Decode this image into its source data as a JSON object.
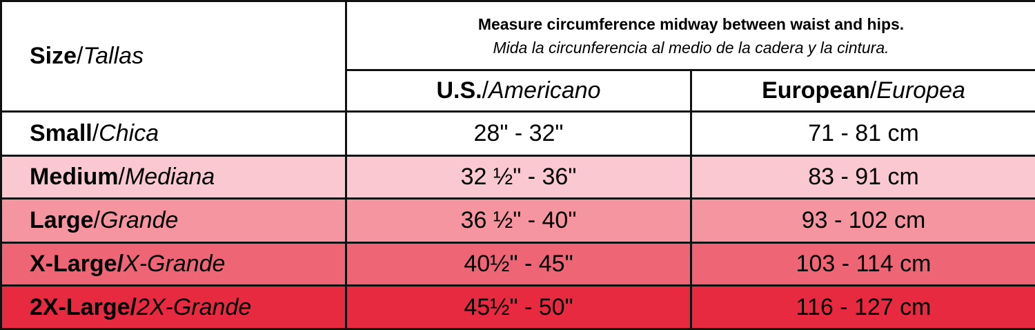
{
  "header": {
    "size": {
      "en": "Size",
      "sep": "/",
      "es": "Tallas"
    },
    "note": "Measure circumference midway between waist and hips.",
    "note_es": "Mida la circunferencia al medio de la cadera y la cintura.",
    "us": {
      "en": "U.S.",
      "sep": "/",
      "es": "Americano"
    },
    "eu": {
      "en": "European",
      "sep": "/",
      "es": "Europea"
    }
  },
  "rows": [
    {
      "size": {
        "en": "Small",
        "sep": "/",
        "es": "Chica"
      },
      "us": "28\" - 32\"",
      "eu": "71 - 81 cm"
    },
    {
      "size": {
        "en": "Medium",
        "sep": "/",
        "es": "Mediana"
      },
      "us": "32 ½\" - 36\"",
      "eu": "83 - 91 cm"
    },
    {
      "size": {
        "en": "Large",
        "sep": "/",
        "es": "Grande"
      },
      "us": "36 ½\" - 40\"",
      "eu": "93 - 102 cm"
    },
    {
      "size": {
        "en": "X-Large",
        "sep": "/",
        "es": "X-Grande"
      },
      "us": "40½\" - 45\"",
      "eu": "103 - 114 cm"
    },
    {
      "size": {
        "en": "2X-Large",
        "sep": "/",
        "es": "2X-Grande"
      },
      "us": "45½\" - 50\"",
      "eu": "116 - 127 cm"
    }
  ]
}
